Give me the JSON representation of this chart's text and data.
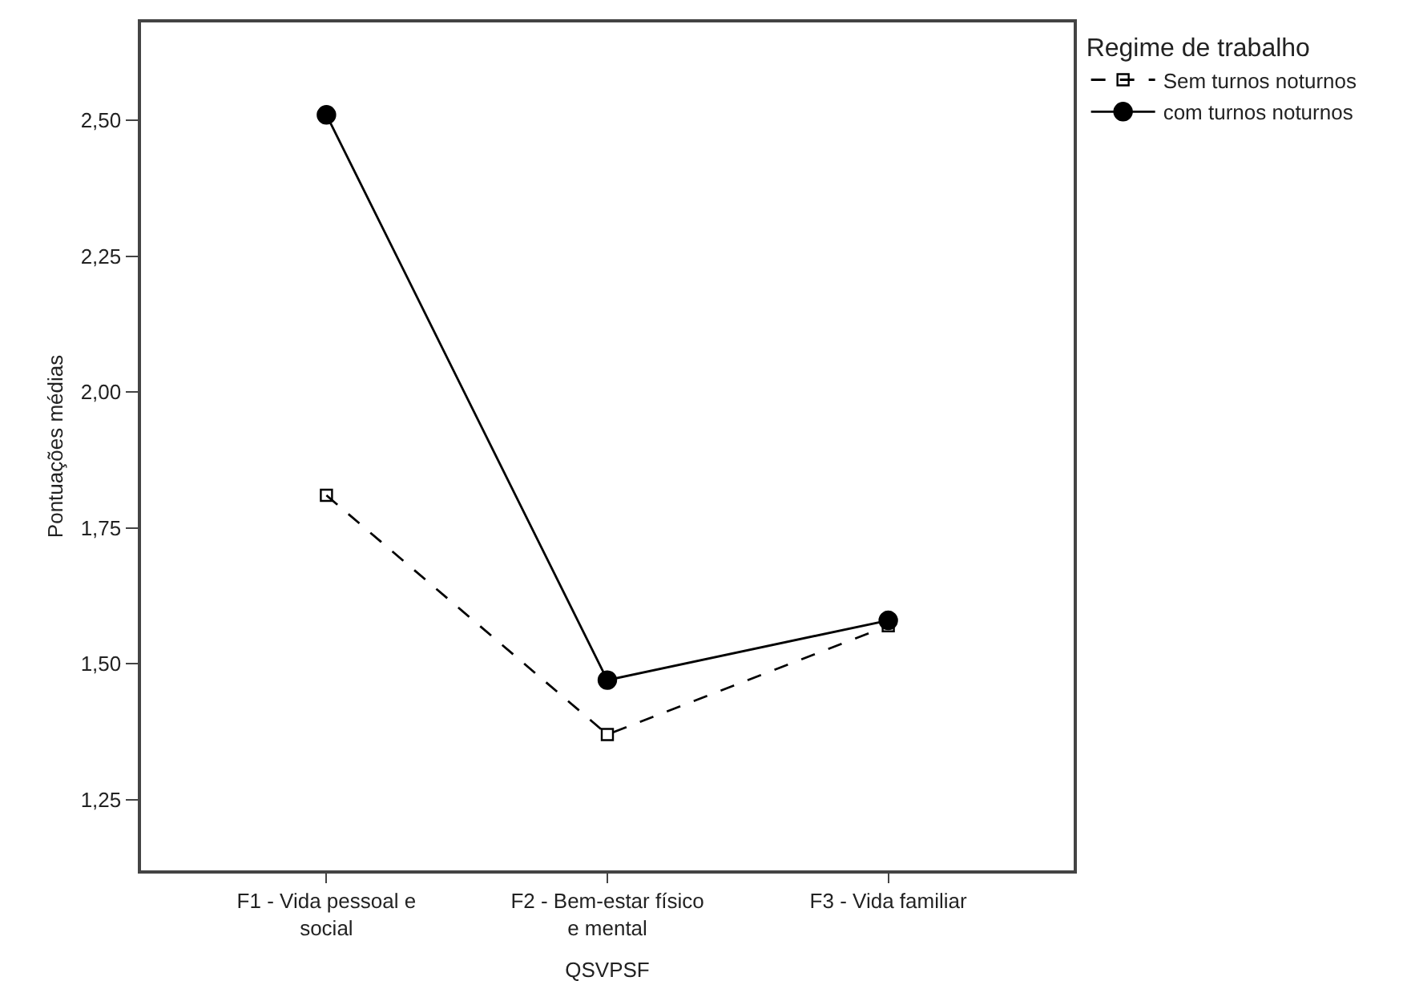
{
  "chart_data": {
    "type": "line",
    "xlabel": "QSVPSF",
    "ylabel": "Pontuações médias",
    "legend_title": "Regime de trabalho",
    "legend": "top right",
    "categories": [
      "F1 - Vida pessoal e social",
      "F2 - Bem-estar físico e mental",
      "F3 - Vida familiar"
    ],
    "ylim": [
      1.12,
      2.68
    ],
    "yticks": [
      {
        "value": 1.25,
        "label": "1,25"
      },
      {
        "value": 1.5,
        "label": "1,50"
      },
      {
        "value": 1.75,
        "label": "1,75"
      },
      {
        "value": 2.0,
        "label": "2,00"
      },
      {
        "value": 2.25,
        "label": "2,25"
      },
      {
        "value": 2.5,
        "label": "2,50"
      }
    ],
    "series": [
      {
        "name": "Sem turnos noturnos",
        "color": "#000000",
        "values": [
          1.81,
          1.37,
          1.57
        ],
        "line_style": "dashed",
        "marker": "square"
      },
      {
        "name": "com turnos noturnos",
        "color": "#000000",
        "values": [
          2.51,
          1.47,
          1.58
        ],
        "line_style": "solid",
        "marker": "circle"
      }
    ]
  }
}
